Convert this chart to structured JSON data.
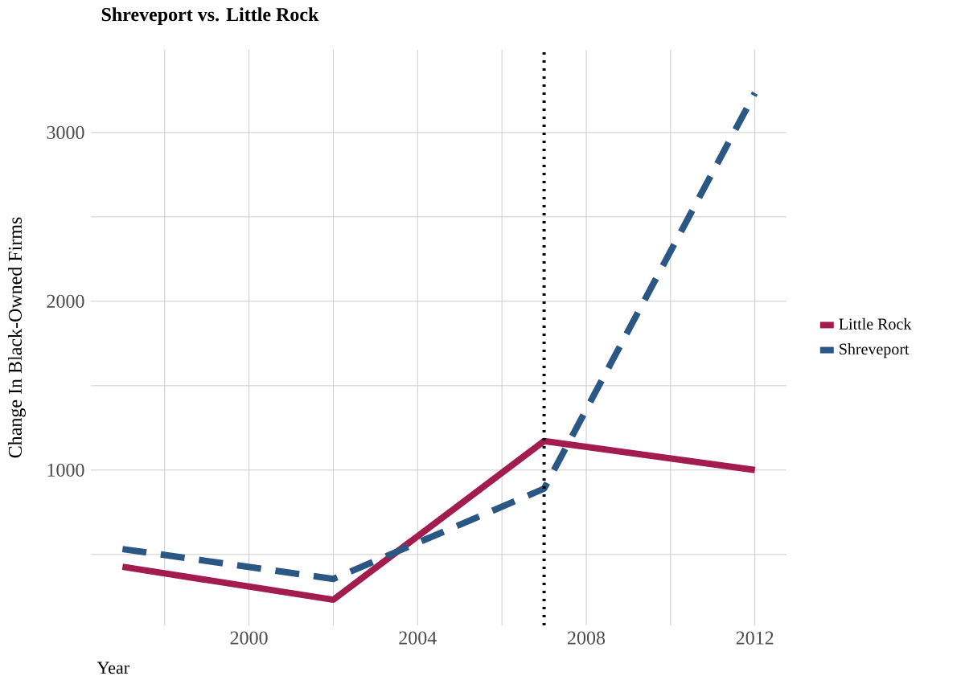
{
  "chart_data": {
    "type": "line",
    "title": "Shreveport vs. Little Rock",
    "xlabel": "Year",
    "ylabel": "Change In Black-Owned Firms",
    "x": [
      1997,
      2002,
      2007,
      2012
    ],
    "series": [
      {
        "name": "Little Rock",
        "color": "#a31c4f",
        "line_style": "solid",
        "values": [
          427,
          232,
          1172,
          1000
        ]
      },
      {
        "name": "Shreveport",
        "color": "#2a5783",
        "line_style": "dashed",
        "values": [
          532,
          355,
          890,
          3234
        ]
      }
    ],
    "xlim": [
      1996.25,
      2012.75
    ],
    "ylim": [
      80,
      3490
    ],
    "xticks": [
      {
        "value": 1998,
        "label": null
      },
      2000,
      {
        "value": 2002,
        "label": null
      },
      2004,
      {
        "value": 2006,
        "label": null
      },
      2008,
      {
        "value": 2010,
        "label": null
      },
      2012
    ],
    "yticks": [
      {
        "value": 500,
        "label": null
      },
      1000,
      {
        "value": 1500,
        "label": null
      },
      2000,
      {
        "value": 2500,
        "label": null
      },
      3000
    ],
    "ref_lines": [
      {
        "axis": "x",
        "value": 2007,
        "color": "#000000",
        "line_style": "dotted"
      }
    ],
    "grid": true,
    "legend": "right"
  }
}
